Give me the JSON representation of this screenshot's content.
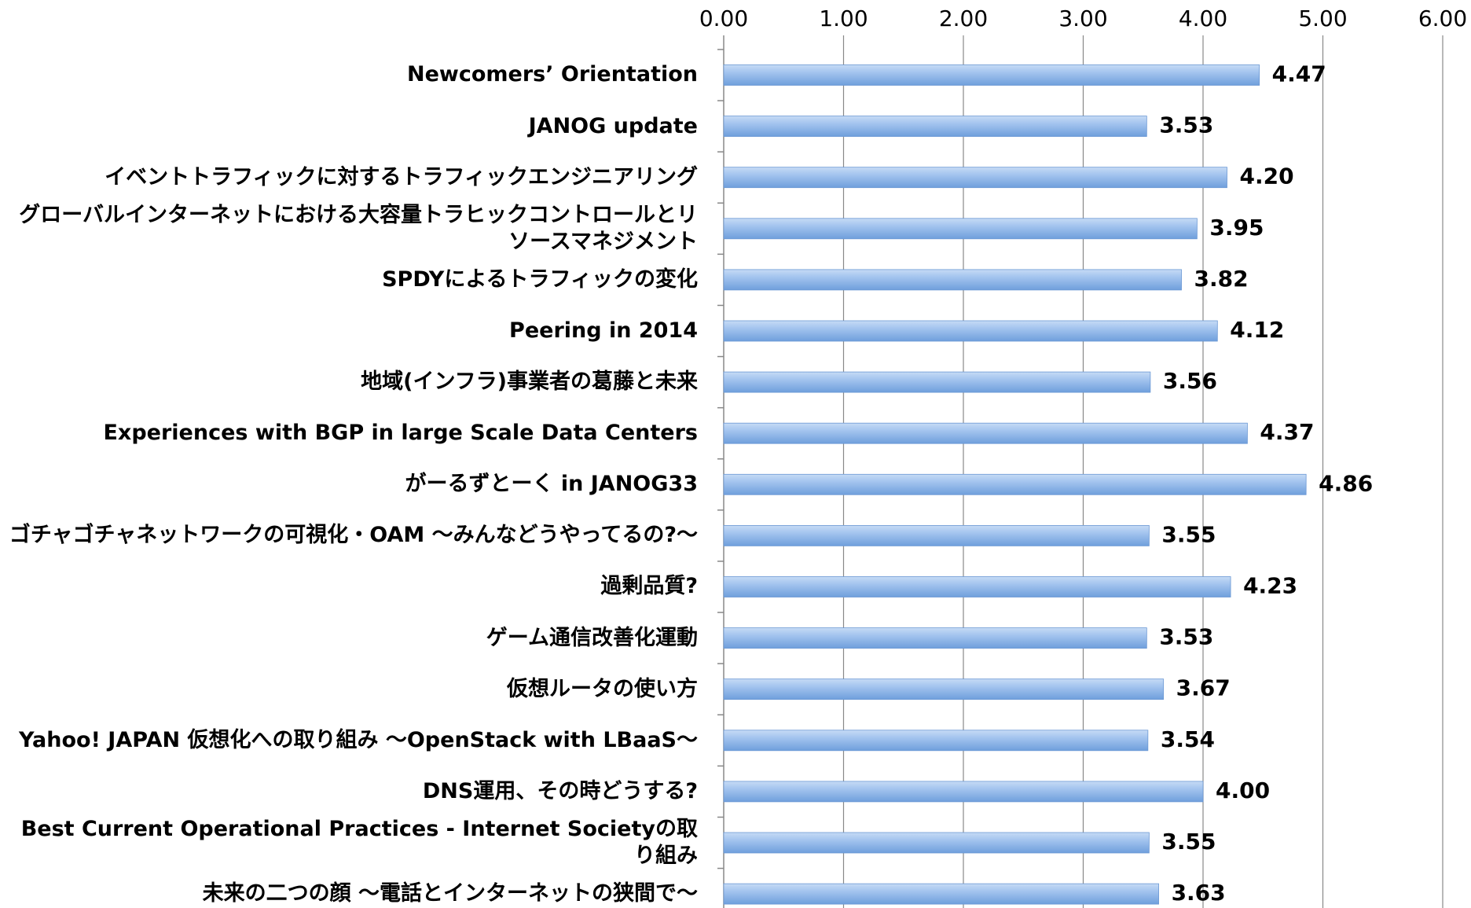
{
  "chart_data": {
    "type": "bar",
    "categories": [
      "Newcomers’ Orientation",
      "JANOG update",
      "イベントトラフィックに対するトラフィックエンジニアリング",
      "グローバルインターネットにおける大容量トラヒックコントロールとリソースマネジメント",
      "SPDYによるトラフィックの変化",
      "Peering in 2014",
      "地域(インフラ)事業者の葛藤と未来",
      "Experiences with BGP in large Scale Data Centers",
      "がーるずとーく in JANOG33",
      "ゴチャゴチャネットワークの可視化・OAM 〜みんなどうやってるの?〜",
      "過剰品質?",
      "ゲーム通信改善化運動",
      "仮想ルータの使い方",
      "Yahoo! JAPAN 仮想化への取り組み 〜OpenStack with LBaaS〜",
      "DNS運用、その時どうする?",
      "Best Current Operational Practices - Internet Societyの取り組み",
      "未来の二つの顔 〜電話とインターネットの狭間で〜"
    ],
    "values": [
      4.47,
      3.53,
      4.2,
      3.95,
      3.82,
      4.12,
      3.56,
      4.37,
      4.86,
      3.55,
      4.23,
      3.53,
      3.67,
      3.54,
      4.0,
      3.55,
      3.63
    ],
    "value_labels": [
      "4.47",
      "3.53",
      "4.20",
      "3.95",
      "3.82",
      "4.12",
      "3.56",
      "4.37",
      "4.86",
      "3.55",
      "4.23",
      "3.53",
      "3.67",
      "3.54",
      "4.00",
      "3.55",
      "3.63"
    ],
    "color": "#8db3e2",
    "xlim": [
      0,
      6
    ],
    "xticks": [
      {
        "value": 0,
        "label": "0.00"
      },
      {
        "value": 1,
        "label": "1.00"
      },
      {
        "value": 2,
        "label": "2.00"
      },
      {
        "value": 3,
        "label": "3.00"
      },
      {
        "value": 4,
        "label": "4.00"
      },
      {
        "value": 5,
        "label": "5.00"
      },
      {
        "value": 6,
        "label": "6.00"
      }
    ],
    "grid": true
  }
}
